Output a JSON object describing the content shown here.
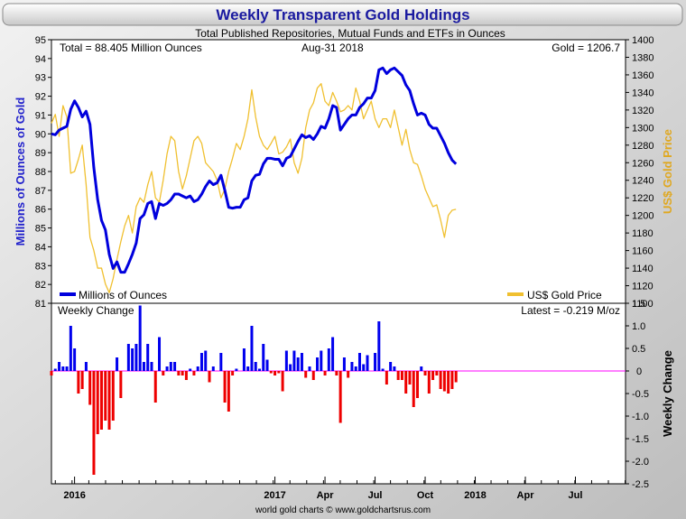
{
  "chart_data": {
    "type": "line",
    "title": "Weekly Transparent Gold Holdings",
    "subtitle": "Total Published Repositories, Mutual Funds and ETFs in Ounces",
    "credit": "world gold charts © www.goldchartsrus.com",
    "annotations": {
      "total": "Total = 88.405 Million Ounces",
      "date": "Aug-31  2018",
      "gold": "Gold = 1206.7",
      "panel2_title": "Weekly Change",
      "latest": "Latest = -0.219 M/oz"
    },
    "ylabel_left": "Millions of Ounces of Gold",
    "ylabel_right": "US$ Gold Price",
    "ylabel_bottom": "Weekly Change",
    "ylim_left": [
      81,
      95
    ],
    "ylim_right": [
      1100,
      1400
    ],
    "ylim_bottom": [
      -2.5,
      1.5
    ],
    "grid": false,
    "legend": [
      {
        "label": "Millions of Ounces",
        "color": "#0000dd"
      },
      {
        "label": "US$ Gold Price",
        "color": "#f0c030"
      }
    ],
    "yticks_left": [
      "95",
      "94",
      "93",
      "92",
      "91",
      "90",
      "89",
      "88",
      "87",
      "86",
      "85",
      "84",
      "83",
      "82",
      "81"
    ],
    "yticks_right": [
      "1400",
      "1380",
      "1360",
      "1340",
      "1320",
      "1300",
      "1280",
      "1260",
      "1240",
      "1220",
      "1200",
      "1180",
      "1160",
      "1140",
      "1120",
      "1100"
    ],
    "yticks_bottom": [
      "1.5",
      "1.0",
      "0.5",
      "0",
      "-0.5",
      "-1.0",
      "-1.5",
      "-2.0",
      "-2.5"
    ],
    "xtick_labels": [
      {
        "label": "2016",
        "x": 6
      },
      {
        "label": "2017",
        "x": 58
      },
      {
        "label": "Apr",
        "x": 71
      },
      {
        "label": "Jul",
        "x": 84
      },
      {
        "label": "Oct",
        "x": 97
      },
      {
        "label": "2018",
        "x": 110
      },
      {
        "label": "Apr",
        "x": 123
      },
      {
        "label": "Jul",
        "x": 136
      }
    ],
    "x_range": [
      0,
      149
    ],
    "holdings": [
      90.0,
      89.95,
      90.2,
      90.3,
      90.4,
      91.3,
      91.75,
      91.4,
      90.9,
      91.2,
      90.5,
      88.2,
      86.5,
      85.4,
      84.9,
      83.6,
      82.85,
      83.2,
      82.65,
      82.65,
      83.1,
      83.6,
      84.2,
      85.5,
      85.7,
      86.3,
      86.4,
      85.5,
      86.3,
      86.2,
      86.3,
      86.5,
      86.8,
      86.8,
      86.7,
      86.6,
      86.7,
      86.4,
      86.5,
      86.8,
      87.2,
      87.5,
      87.3,
      87.4,
      87.8,
      87.0,
      86.1,
      86.05,
      86.1,
      86.1,
      86.5,
      86.6,
      87.5,
      87.8,
      87.85,
      88.4,
      88.7,
      88.7,
      88.65,
      88.65,
      88.3,
      88.7,
      88.8,
      89.2,
      89.6,
      89.95,
      89.8,
      89.9,
      89.7,
      90.0,
      90.4,
      90.3,
      90.8,
      91.5,
      91.4,
      90.2,
      90.5,
      90.8,
      91.0,
      91.0,
      91.4,
      91.6,
      91.9,
      91.9,
      92.3,
      93.4,
      93.5,
      93.2,
      93.4,
      93.5,
      93.3,
      93.1,
      92.6,
      92.3,
      91.6,
      91.0,
      91.1,
      91.0,
      90.5,
      90.3,
      90.3,
      89.9,
      89.5,
      89.0,
      88.6,
      88.4
    ],
    "gold_price": [
      1305,
      1315,
      1290,
      1325,
      1312,
      1248,
      1250,
      1264,
      1280,
      1235,
      1175,
      1160,
      1140,
      1140,
      1122,
      1112,
      1128,
      1150,
      1170,
      1188,
      1200,
      1180,
      1210,
      1220,
      1215,
      1235,
      1250,
      1220,
      1215,
      1240,
      1270,
      1290,
      1285,
      1250,
      1230,
      1245,
      1265,
      1285,
      1290,
      1282,
      1260,
      1255,
      1250,
      1240,
      1220,
      1230,
      1250,
      1265,
      1282,
      1275,
      1290,
      1310,
      1343,
      1312,
      1290,
      1280,
      1275,
      1282,
      1290,
      1270,
      1272,
      1278,
      1287,
      1260,
      1248,
      1265,
      1300,
      1320,
      1328,
      1345,
      1350,
      1330,
      1325,
      1340,
      1330,
      1318,
      1320,
      1325,
      1320,
      1345,
      1330,
      1310,
      1320,
      1330,
      1310,
      1300,
      1310,
      1310,
      1300,
      1320,
      1300,
      1280,
      1298,
      1275,
      1260,
      1258,
      1245,
      1230,
      1220,
      1210,
      1212,
      1195,
      1175,
      1200,
      1206,
      1207
    ],
    "weekly_change": [
      -0.1,
      0.05,
      0.2,
      0.1,
      0.1,
      1.0,
      0.5,
      -0.5,
      -0.4,
      0.2,
      -0.75,
      -2.3,
      -1.4,
      -1.3,
      -1.1,
      -1.3,
      -1.1,
      0.3,
      -0.6,
      0.0,
      0.6,
      0.5,
      0.6,
      1.45,
      0.2,
      0.6,
      0.2,
      -0.7,
      0.75,
      -0.1,
      0.1,
      0.2,
      0.2,
      -0.1,
      -0.1,
      -0.2,
      0.05,
      -0.1,
      0.1,
      0.4,
      0.45,
      -0.25,
      0.1,
      0.0,
      0.4,
      -0.7,
      -0.9,
      -0.1,
      0.05,
      0.0,
      0.5,
      0.1,
      1.0,
      0.2,
      0.05,
      0.6,
      0.25,
      -0.05,
      -0.1,
      -0.05,
      -0.45,
      0.45,
      0.15,
      0.45,
      0.3,
      0.4,
      -0.15,
      0.1,
      -0.2,
      0.3,
      0.45,
      -0.1,
      0.5,
      0.75,
      -0.1,
      -1.15,
      0.3,
      -0.15,
      0.2,
      0.1,
      0.4,
      0.15,
      0.35,
      0.0,
      0.4,
      1.1,
      0.05,
      -0.3,
      0.2,
      0.1,
      -0.2,
      -0.2,
      -0.5,
      -0.3,
      -0.8,
      -0.6,
      0.1,
      -0.1,
      -0.5,
      -0.2,
      -0.1,
      -0.4,
      -0.45,
      -0.5,
      -0.4,
      -0.25
    ]
  }
}
